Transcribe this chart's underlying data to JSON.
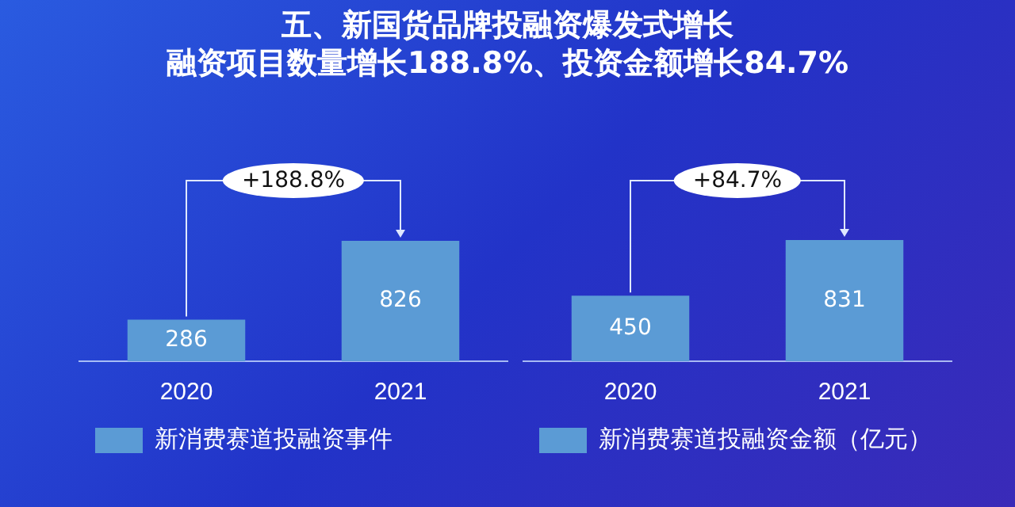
{
  "chart_data": [
    {
      "type": "bar",
      "title": "五、新国货品牌投融资爆发式增长",
      "subtitle": "融资项目数量增长188.8%、投资金额增长84.7%",
      "categories": [
        "2020",
        "2021"
      ],
      "series": [
        {
          "name": "新消费赛道投融资事件",
          "color": "#5b9bd5",
          "values": [
            286,
            826
          ]
        }
      ],
      "data_labels": true,
      "legend": "bottom",
      "grid": false,
      "tick_labels": "x",
      "annotations": [
        "+188.8%"
      ]
    },
    {
      "type": "bar",
      "categories": [
        "2020",
        "2021"
      ],
      "series": [
        {
          "name": "新消费赛道投融资金额（亿元）",
          "color": "#5b9bd5",
          "values": [
            450,
            831
          ]
        }
      ],
      "data_labels": true,
      "legend": "bottom",
      "grid": false,
      "tick_labels": "x",
      "annotations": [
        "+84.7%"
      ]
    }
  ]
}
